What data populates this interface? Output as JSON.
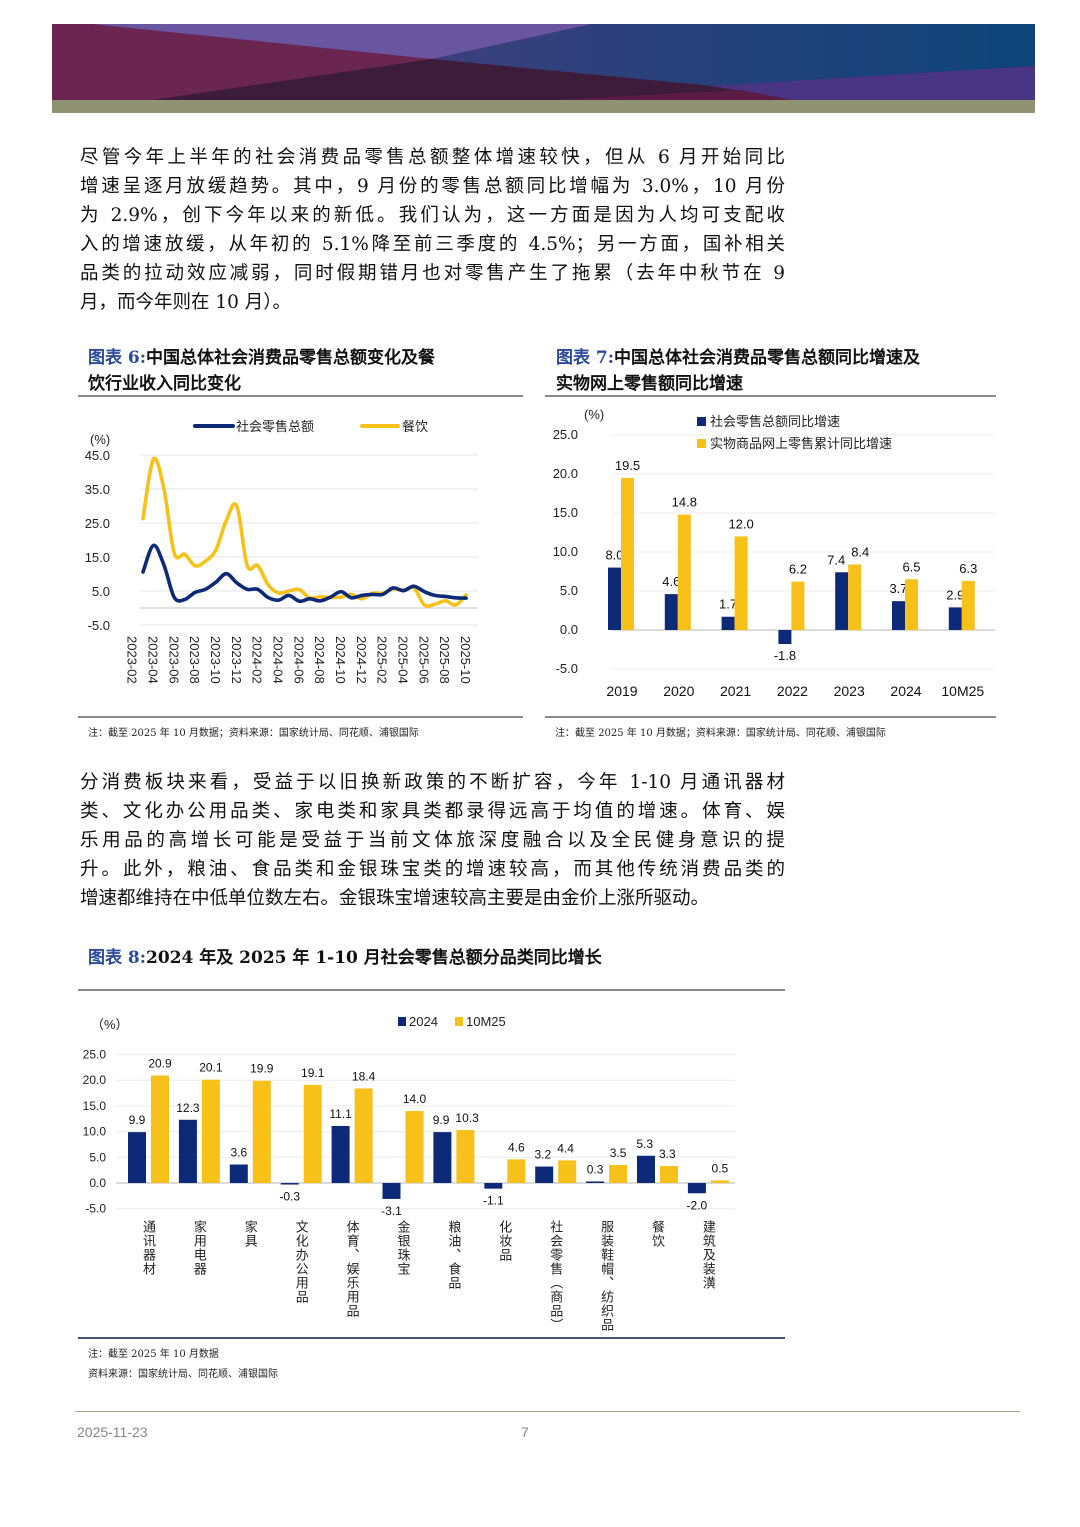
{
  "paragraph1": [
    "尽管今年上半年的社会消费品零售总额整体增速较快，但从 6 月开始同比",
    "增速呈逐月放缓趋势。其中，9 月份的零售总额同比增幅为 3.0%，10 月份",
    "为 2.9%，创下今年以来的新低。我们认为，这一方面是因为人均可支配收",
    "入的增速放缓，从年初的 5.1%降至前三季度的 4.5%；另一方面，国补相关",
    "品类的拉动效应减弱，同时假期错月也对零售产生了拖累（去年中秋节在 9",
    "月，而今年则在 10 月）。"
  ],
  "paragraph2": [
    "分消费板块来看，受益于以旧换新政策的不断扩容，今年 1-10 月通讯器材",
    "类、文化办公用品类、家电类和家具类都录得远高于均值的增速。体育、娱",
    "乐用品的高增长可能是受益于当前文体旅深度融合以及全民健身意识的提",
    "升。此外，粮油、食品类和金银珠宝类的增速较高，而其他传统消费品类的",
    "增速都维持在中低单位数左右。金银珠宝增速较高主要是由金价上涨所驱动。"
  ],
  "figure6": {
    "tag": "图表 6:",
    "title_line1": "中国总体社会消费品零售总额变化及餐",
    "title_line2": "饮行业收入同比变化",
    "note": "注：截至 2025 年 10 月数据；资料来源：国家统计局、同花顺、浦银国际"
  },
  "figure7": {
    "tag": "图表 7:",
    "title_line1": "中国总体社会消费品零售总额同比增速及",
    "title_line2": "实物网上零售额同比增速",
    "note": "注：截至 2025 年 10 月数据；资料来源：国家统计局、同花顺、浦银国际"
  },
  "figure8": {
    "tag": "图表 8:",
    "title": "2024 年及 2025 年 1-10 月社会零售总额分品类同比增长",
    "note1": "注：截至 2025 年 10 月数据",
    "note2": "资料来源：国家统计局、同花顺、浦银国际"
  },
  "chart_data": [
    {
      "type": "line",
      "ylabel": "(%)",
      "ylim": [
        -5,
        45
      ],
      "yticks": [
        "45.0",
        "35.0",
        "25.0",
        "15.0",
        "5.0",
        "-5.0"
      ],
      "ytick_values": [
        45,
        35,
        25,
        15,
        5,
        -5
      ],
      "xtick_labels": [
        "2023-02",
        "2023-04",
        "2023-06",
        "2023-08",
        "2023-10",
        "2023-12",
        "2024-02",
        "2024-04",
        "2024-06",
        "2024-08",
        "2024-10",
        "2024-12",
        "2025-02",
        "2025-04",
        "2025-06",
        "2025-08",
        "2025-10"
      ],
      "x": [
        "2023-03",
        "2023-04",
        "2023-05",
        "2023-06",
        "2023-07",
        "2023-08",
        "2023-09",
        "2023-10",
        "2023-11",
        "2023-12",
        "2024-01",
        "2024-02",
        "2024-03",
        "2024-04",
        "2024-05",
        "2024-06",
        "2024-07",
        "2024-08",
        "2024-09",
        "2024-10",
        "2024-11",
        "2024-12",
        "2025-01",
        "2025-02",
        "2025-03",
        "2025-04",
        "2025-05",
        "2025-06",
        "2025-07",
        "2025-08",
        "2025-09",
        "2025-10"
      ],
      "series": [
        {
          "name": "社会零售总额",
          "color": "#0d2a78",
          "values": [
            10.6,
            18.4,
            12.7,
            3.1,
            2.5,
            4.6,
            5.5,
            7.6,
            10.1,
            7.4,
            5.5,
            5.5,
            3.1,
            2.3,
            3.7,
            2.0,
            2.7,
            2.1,
            3.2,
            4.8,
            3.0,
            3.7,
            4.0,
            4.0,
            5.9,
            5.1,
            6.4,
            4.8,
            3.7,
            3.4,
            3.0,
            2.9
          ]
        },
        {
          "name": "餐饮",
          "color": "#f7c11a",
          "values": [
            26.3,
            43.8,
            35.1,
            16.1,
            15.8,
            12.4,
            13.8,
            17.1,
            25.8,
            30.0,
            12.5,
            12.5,
            6.9,
            4.4,
            5.0,
            5.4,
            3.0,
            3.3,
            3.1,
            3.2,
            4.0,
            2.7,
            4.3,
            4.3,
            5.6,
            5.2,
            5.9,
            0.9,
            1.1,
            2.1,
            0.9,
            3.8
          ]
        }
      ],
      "grid": true,
      "legend": "top"
    },
    {
      "type": "bar",
      "ylabel": "(%)",
      "ylim": [
        -5,
        25
      ],
      "yticks": [
        "25.0",
        "20.0",
        "15.0",
        "10.0",
        "5.0",
        "0.0",
        "-5.0"
      ],
      "ytick_values": [
        25,
        20,
        15,
        10,
        5,
        0,
        -5
      ],
      "categories": [
        "2019",
        "2020",
        "2021",
        "2022",
        "2023",
        "2024",
        "10M25"
      ],
      "series": [
        {
          "name": "社会零售总额同比增速",
          "color": "#0d2a78",
          "values": [
            8.0,
            4.6,
            1.7,
            -1.8,
            7.4,
            3.7,
            2.9
          ]
        },
        {
          "name": "实物商品网上零售累计同比增速",
          "color": "#f7c11a",
          "values": [
            19.5,
            14.8,
            12.0,
            6.2,
            8.4,
            6.5,
            6.3
          ]
        }
      ],
      "grid": true,
      "legend": "top"
    },
    {
      "type": "bar",
      "ylabel": "（%）",
      "ylim": [
        -5,
        25
      ],
      "yticks": [
        "25.0",
        "20.0",
        "15.0",
        "10.0",
        "5.0",
        "0.0",
        "-5.0"
      ],
      "ytick_values": [
        25,
        20,
        15,
        10,
        5,
        0,
        -5
      ],
      "categories": [
        "通讯器材",
        "家用电器",
        "家具",
        "文化办公用品",
        "体育、娱乐用品",
        "金银珠宝",
        "粮油、食品",
        "化妆品",
        "社会零售（商品）",
        "服装鞋帽、纺织品",
        "餐饮",
        "建筑及装潢"
      ],
      "series": [
        {
          "name": "2024",
          "color": "#0d2a78",
          "values": [
            9.9,
            12.3,
            3.6,
            -0.3,
            11.1,
            -3.1,
            9.9,
            -1.1,
            3.2,
            0.3,
            5.3,
            -2.0
          ]
        },
        {
          "name": "10M25",
          "color": "#f7c11a",
          "values": [
            20.9,
            20.1,
            19.9,
            19.1,
            18.4,
            14.0,
            10.3,
            4.6,
            4.4,
            3.5,
            3.3,
            0.5
          ]
        }
      ],
      "grid": true,
      "legend": "top"
    }
  ],
  "footer": {
    "date": "2025-11-23",
    "page": "7"
  }
}
